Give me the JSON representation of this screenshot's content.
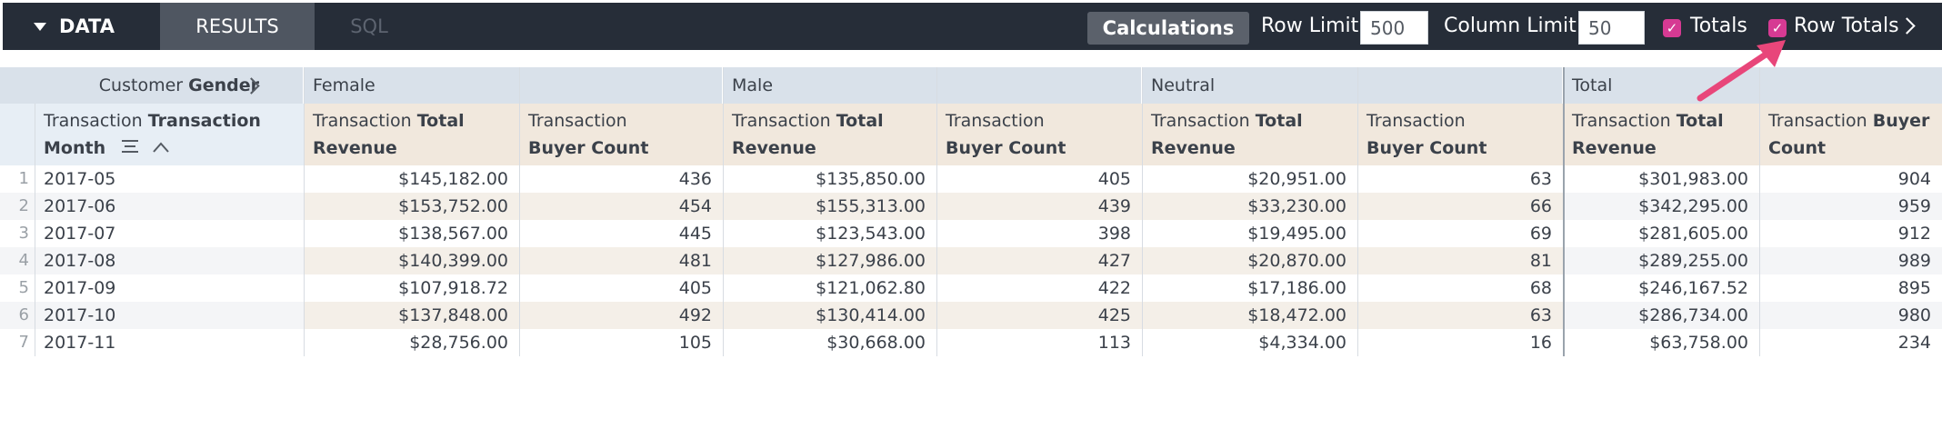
{
  "toolbar": {
    "data_label": "DATA",
    "results_label": "RESULTS",
    "sql_label": "SQL",
    "calculations_label": "Calculations",
    "row_limit_label": "Row Limit",
    "row_limit_value": "500",
    "column_limit_label": "Column Limit",
    "column_limit_value": "50",
    "totals_label": "Totals",
    "totals_checked": true,
    "row_totals_label": "Row Totals",
    "row_totals_checked": true
  },
  "pivot": {
    "label_prefix": "Customer",
    "label_field": "Gender",
    "groups": [
      "Female",
      "Male",
      "Neutral",
      "Total"
    ]
  },
  "row_header": {
    "prefix": "Transaction",
    "field_part1": "Transaction",
    "field_part2": "Month"
  },
  "measures": [
    {
      "prefix": "Transaction",
      "prefix_plain": "Transaction",
      "bold_part": "Total",
      "second_line": "Revenue"
    },
    {
      "prefix": "Transaction",
      "second_line": "Buyer Count"
    }
  ],
  "total_measures": [
    {
      "prefix": "Transaction",
      "bold_part": "Total",
      "second_line": "Revenue"
    },
    {
      "prefix": "Transaction",
      "bold_part": "Buyer",
      "second_line": "Count"
    }
  ],
  "rows": [
    {
      "n": "1",
      "month": "2017-05",
      "vals": [
        "$145,182.00",
        "436",
        "$135,850.00",
        "405",
        "$20,951.00",
        "63",
        "$301,983.00",
        "904"
      ]
    },
    {
      "n": "2",
      "month": "2017-06",
      "vals": [
        "$153,752.00",
        "454",
        "$155,313.00",
        "439",
        "$33,230.00",
        "66",
        "$342,295.00",
        "959"
      ]
    },
    {
      "n": "3",
      "month": "2017-07",
      "vals": [
        "$138,567.00",
        "445",
        "$123,543.00",
        "398",
        "$19,495.00",
        "69",
        "$281,605.00",
        "912"
      ]
    },
    {
      "n": "4",
      "month": "2017-08",
      "vals": [
        "$140,399.00",
        "481",
        "$127,986.00",
        "427",
        "$20,870.00",
        "81",
        "$289,255.00",
        "989"
      ]
    },
    {
      "n": "5",
      "month": "2017-09",
      "vals": [
        "$107,918.72",
        "405",
        "$121,062.80",
        "422",
        "$17,186.00",
        "68",
        "$246,167.52",
        "895"
      ]
    },
    {
      "n": "6",
      "month": "2017-10",
      "vals": [
        "$137,848.00",
        "492",
        "$130,414.00",
        "425",
        "$18,472.00",
        "63",
        "$286,734.00",
        "980"
      ]
    },
    {
      "n": "7",
      "month": "2017-11",
      "vals": [
        "$28,756.00",
        "105",
        "$30,668.00",
        "113",
        "$4,334.00",
        "16",
        "$63,758.00",
        "234"
      ]
    }
  ],
  "colors": {
    "toolbar_bg": "#262d38",
    "accent_checkbox": "#d63a93",
    "annotation_arrow": "#e8467a",
    "pivot_header_bg": "#d9e1ea",
    "measure_header_bg": "#f1e8dd"
  }
}
